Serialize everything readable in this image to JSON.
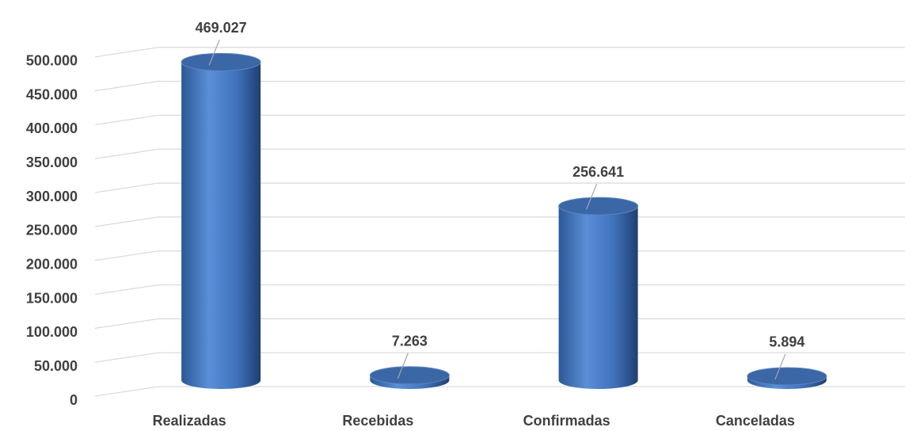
{
  "chart_data": {
    "type": "bar3d",
    "categories": [
      "Realizadas",
      "Recebidas",
      "Confirmadas",
      "Canceladas"
    ],
    "values": [
      469027,
      7263,
      256641,
      5894
    ],
    "value_labels": [
      "469.027",
      "7.263",
      "256.641",
      "5.894"
    ],
    "color": "#4a7fc7",
    "ylim": [
      0,
      550000
    ],
    "yticks": [
      0,
      {
        "value": 50000,
        "label": "50.000"
      },
      {
        "value": 100000,
        "label": "100.000"
      },
      {
        "value": 150000,
        "label": "150.000"
      },
      {
        "value": 200000,
        "label": "200.000"
      },
      {
        "value": 250000,
        "label": "250.000"
      },
      {
        "value": 300000,
        "label": "300.000"
      },
      {
        "value": 350000,
        "label": "350.000"
      },
      {
        "value": 400000,
        "label": "400.000"
      },
      {
        "value": 450000,
        "label": "450.000"
      },
      {
        "value": 500000,
        "label": "500.000"
      }
    ],
    "grid": true
  }
}
